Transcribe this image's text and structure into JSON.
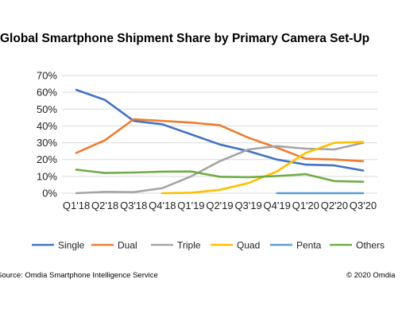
{
  "chart_data": {
    "type": "line",
    "title": "Global Smartphone Shipment Share by Primary Camera Set-Up",
    "xlabel": "",
    "ylabel": "",
    "categories": [
      "Q1'18",
      "Q2'18",
      "Q3'18",
      "Q4'18",
      "Q1'19",
      "Q2'19",
      "Q3'19",
      "Q4'19",
      "Q1'20",
      "Q2'20",
      "Q3'20"
    ],
    "ylim": [
      0,
      70
    ],
    "yticks": [
      "0%",
      "10%",
      "20%",
      "30%",
      "40%",
      "50%",
      "60%",
      "70%"
    ],
    "grid": true,
    "legend_position": "bottom",
    "series": [
      {
        "name": "Single",
        "color": "#4472C4",
        "values": [
          61.5,
          55.5,
          43,
          41,
          35,
          29,
          25,
          20,
          17,
          16.5,
          13.5
        ]
      },
      {
        "name": "Dual",
        "color": "#ED7D31",
        "values": [
          24,
          31.5,
          44,
          43,
          42,
          40.5,
          33,
          27,
          20.5,
          20,
          19
        ]
      },
      {
        "name": "Triple",
        "color": "#A5A5A5",
        "values": [
          0,
          0.8,
          0.6,
          3,
          10,
          19,
          26,
          28,
          26.5,
          26,
          30
        ]
      },
      {
        "name": "Quad",
        "color": "#FFC000",
        "values": [
          null,
          null,
          null,
          0,
          0.3,
          2,
          6,
          13,
          24,
          30,
          30.5
        ]
      },
      {
        "name": "Penta",
        "color": "#5B9BD5",
        "values": [
          null,
          null,
          null,
          null,
          null,
          null,
          null,
          0,
          0,
          0,
          0
        ]
      },
      {
        "name": "Others",
        "color": "#70AD47",
        "values": [
          14,
          12,
          12.3,
          12.8,
          12.9,
          9.8,
          9.5,
          10.2,
          11.3,
          7.2,
          6.8
        ]
      }
    ]
  },
  "footer": {
    "source": "Source: Omdia Smartphone Intelligence Service",
    "copyright": "© 2020 Omdia"
  }
}
